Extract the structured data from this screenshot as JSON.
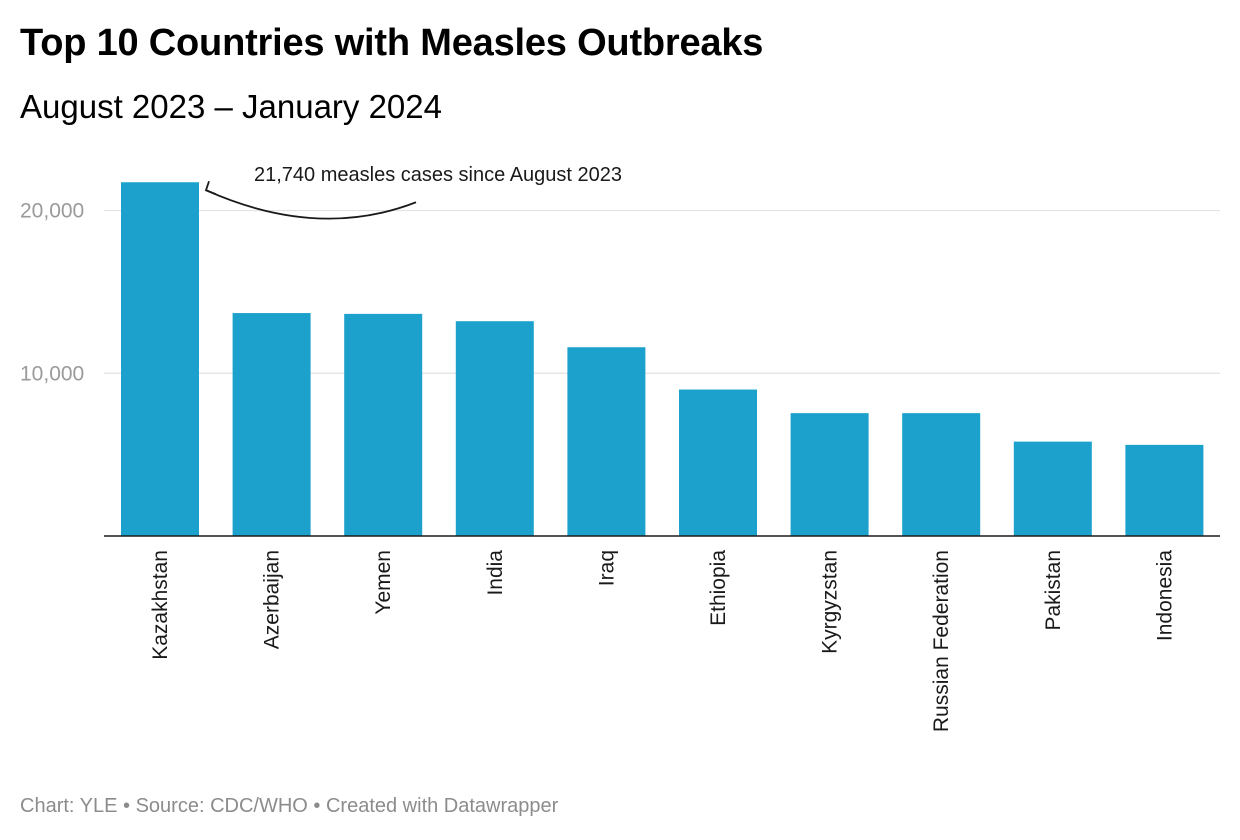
{
  "title": "Top 10 Countries with Measles Outbreaks",
  "subtitle": "August 2023 – January 2024",
  "footer": {
    "chart_credit": "Chart: YLE",
    "source": "Source: CDC/WHO",
    "created_with": "Created with Datawrapper",
    "separator": " • "
  },
  "colors": {
    "bar": "#1ba1cc",
    "grid": "#e3e3e3",
    "axis": "#1a1a1a"
  },
  "chart_data": {
    "type": "bar",
    "categories": [
      "Kazakhstan",
      "Azerbaijan",
      "Yemen",
      "India",
      "Iraq",
      "Ethiopia",
      "Kyrgyzstan",
      "Russian Federation",
      "Pakistan",
      "Indonesia"
    ],
    "values": [
      21740,
      13700,
      13650,
      13200,
      11600,
      9000,
      7550,
      7550,
      5800,
      5600
    ],
    "ylim": [
      0,
      22000
    ],
    "yticks": [
      10000,
      20000
    ],
    "ytick_labels": [
      "10,000",
      "20,000"
    ],
    "xlabel": "",
    "ylabel": "",
    "grid": true,
    "legend": "none",
    "annotation": {
      "text": "21,740 measles cases since August 2023",
      "category": "Kazakhstan"
    }
  }
}
